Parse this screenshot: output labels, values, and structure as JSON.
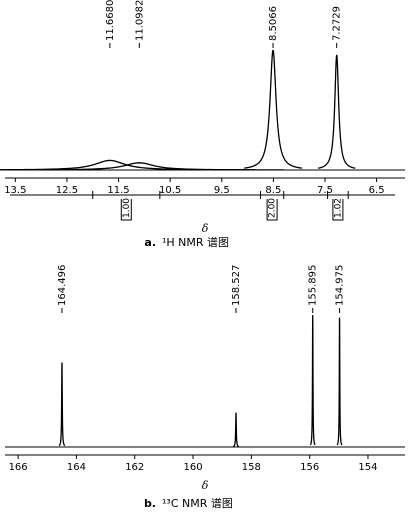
{
  "chart_data": [
    {
      "type": "spectrum",
      "xlabel": "δ",
      "caption_label": "a.",
      "caption": "¹H NMR 谱图",
      "xlim": [
        13.7,
        5.95
      ],
      "xticks": [
        13.5,
        12.5,
        11.5,
        10.5,
        9.5,
        8.5,
        7.5,
        6.5
      ],
      "ylim": [
        0,
        100
      ],
      "color": "#000000",
      "peaks": {
        "x": [
          11.668,
          11.0982,
          8.5066,
          7.2729
        ],
        "x_labels": [
          "11.6680",
          "11.0982",
          "8.5066",
          "7.2729"
        ],
        "heights": [
          8,
          6,
          100,
          96
        ],
        "widths": [
          0.35,
          0.35,
          0.07,
          0.045
        ]
      },
      "integrals": {
        "values": [
          1,
          2,
          1.02
        ],
        "value_labels": [
          "1.00",
          "2.00",
          "1.02"
        ],
        "ranges": [
          [
            12.0,
            10.7
          ],
          [
            8.75,
            8.3
          ],
          [
            7.45,
            7.05
          ]
        ]
      }
    },
    {
      "type": "spectrum",
      "xlabel": "δ",
      "caption_label": "b.",
      "caption": "¹³C NMR 谱图",
      "xlim": [
        166.45,
        152.73
      ],
      "xticks": [
        166,
        164,
        162,
        160,
        158,
        156,
        154
      ],
      "ylim": [
        0,
        100
      ],
      "color": "#000000",
      "peaks": {
        "x": [
          164.496,
          158.527,
          155.895,
          154.975
        ],
        "x_labels": [
          "164.496",
          "158.527",
          "155.895",
          "154.975"
        ],
        "heights": [
          64,
          26,
          100,
          98
        ],
        "widths": [
          0.012,
          0.012,
          0.01,
          0.01
        ]
      }
    }
  ]
}
